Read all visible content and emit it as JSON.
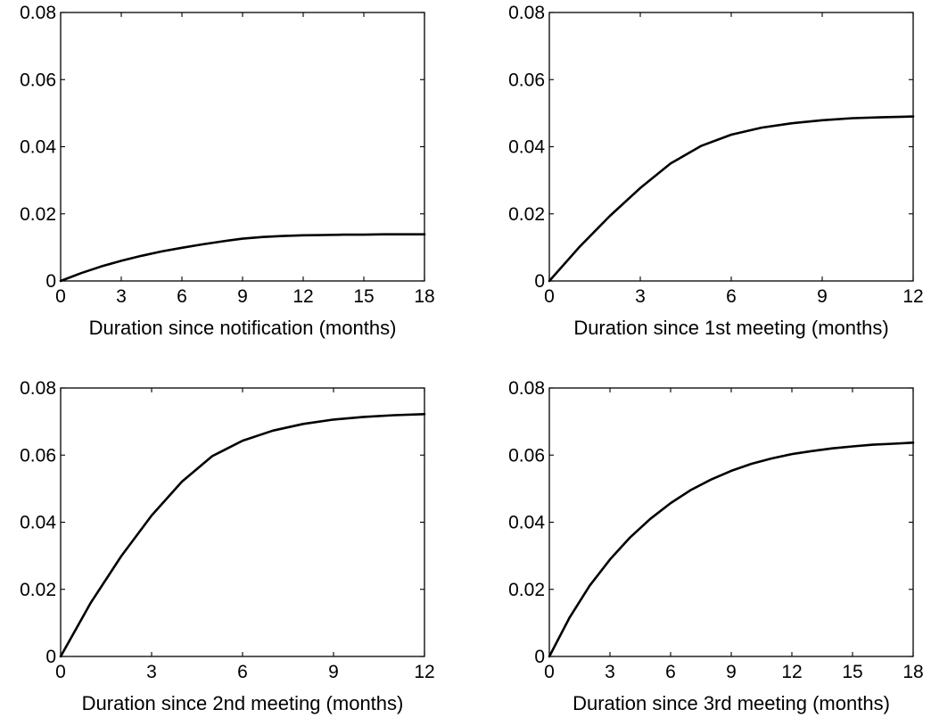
{
  "chart_data": [
    {
      "type": "line",
      "xlabel": "Duration since notification (months)",
      "ylabel": "",
      "xlim": [
        0,
        18
      ],
      "ylim": [
        0,
        0.08
      ],
      "xticks": [
        "0",
        "3",
        "6",
        "9",
        "12",
        "15",
        "18"
      ],
      "yticks": [
        "0",
        "0.02",
        "0.04",
        "0.06",
        "0.08"
      ],
      "grid": false,
      "series": [
        {
          "x": [
            0,
            1,
            2,
            3,
            4,
            5,
            6,
            7,
            8,
            9,
            10,
            11,
            12,
            13,
            14,
            15,
            16,
            17,
            18
          ],
          "y": [
            0,
            0.0023,
            0.0043,
            0.006,
            0.0075,
            0.0088,
            0.0099,
            0.0109,
            0.0118,
            0.0126,
            0.0131,
            0.0134,
            0.0136,
            0.0137,
            0.0138,
            0.0138,
            0.0139,
            0.0139,
            0.0139
          ]
        }
      ]
    },
    {
      "type": "line",
      "xlabel": "Duration since 1st meeting (months)",
      "ylabel": "",
      "xlim": [
        0,
        12
      ],
      "ylim": [
        0,
        0.08
      ],
      "xticks": [
        "0",
        "3",
        "6",
        "9",
        "12"
      ],
      "yticks": [
        "0",
        "0.02",
        "0.04",
        "0.06",
        "0.08"
      ],
      "grid": false,
      "series": [
        {
          "x": [
            0,
            1,
            2,
            3,
            4,
            5,
            6,
            7,
            8,
            9,
            10,
            11,
            12
          ],
          "y": [
            0,
            0.0102,
            0.0194,
            0.0277,
            0.035,
            0.0402,
            0.0436,
            0.0457,
            0.047,
            0.0479,
            0.0485,
            0.0488,
            0.049
          ]
        }
      ]
    },
    {
      "type": "line",
      "xlabel": "Duration since 2nd meeting (months)",
      "ylabel": "",
      "xlim": [
        0,
        12
      ],
      "ylim": [
        0,
        0.08
      ],
      "xticks": [
        "0",
        "3",
        "6",
        "9",
        "12"
      ],
      "yticks": [
        "0",
        "0.02",
        "0.04",
        "0.06",
        "0.08"
      ],
      "grid": false,
      "series": [
        {
          "x": [
            0,
            1,
            2,
            3,
            4,
            5,
            6,
            7,
            8,
            9,
            10,
            11,
            12
          ],
          "y": [
            0,
            0.0161,
            0.0299,
            0.042,
            0.0521,
            0.0597,
            0.0643,
            0.0673,
            0.0693,
            0.0706,
            0.0714,
            0.0719,
            0.0722
          ]
        }
      ]
    },
    {
      "type": "line",
      "xlabel": "Duration since 3rd meeting (months)",
      "ylabel": "",
      "xlim": [
        0,
        18
      ],
      "ylim": [
        0,
        0.08
      ],
      "xticks": [
        "0",
        "3",
        "6",
        "9",
        "12",
        "15",
        "18"
      ],
      "yticks": [
        "0",
        "0.02",
        "0.04",
        "0.06",
        "0.08"
      ],
      "grid": false,
      "series": [
        {
          "x": [
            0,
            1,
            2,
            3,
            4,
            5,
            6,
            7,
            8,
            9,
            10,
            11,
            12,
            13,
            14,
            15,
            16,
            17,
            18
          ],
          "y": [
            0,
            0.0116,
            0.0211,
            0.0289,
            0.0355,
            0.041,
            0.0457,
            0.0496,
            0.0527,
            0.0553,
            0.0574,
            0.059,
            0.0603,
            0.0612,
            0.062,
            0.0626,
            0.0631,
            0.0634,
            0.0637
          ]
        }
      ]
    }
  ]
}
